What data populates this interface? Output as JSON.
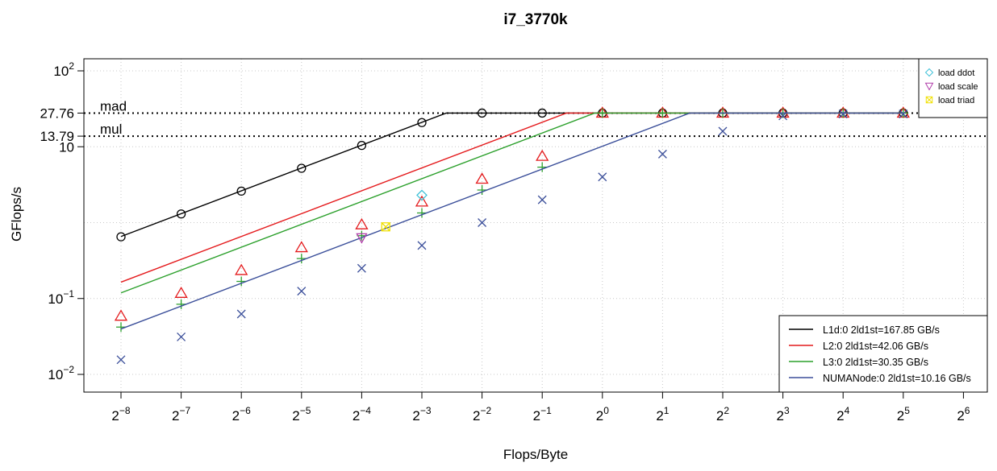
{
  "chart_data": {
    "type": "line",
    "title": "i7_3770k",
    "xlabel": "Flops/Byte",
    "ylabel": "GFlops/s",
    "x_scale": "log2",
    "y_scale": "log10",
    "xlim": [
      -8.3,
      6.3
    ],
    "ylim_log10": [
      -2.2,
      2.2
    ],
    "x_ticks": [
      {
        "exp": -8,
        "base": "2",
        "sup": "−8"
      },
      {
        "exp": -7,
        "base": "2",
        "sup": "−7"
      },
      {
        "exp": -6,
        "base": "2",
        "sup": "−6"
      },
      {
        "exp": -5,
        "base": "2",
        "sup": "−5"
      },
      {
        "exp": -4,
        "base": "2",
        "sup": "−4"
      },
      {
        "exp": -3,
        "base": "2",
        "sup": "−3"
      },
      {
        "exp": -2,
        "base": "2",
        "sup": "−2"
      },
      {
        "exp": -1,
        "base": "2",
        "sup": "−1"
      },
      {
        "exp": 0,
        "base": "2",
        "sup": "0"
      },
      {
        "exp": 1,
        "base": "2",
        "sup": "1"
      },
      {
        "exp": 2,
        "base": "2",
        "sup": "2"
      },
      {
        "exp": 3,
        "base": "2",
        "sup": "3"
      },
      {
        "exp": 4,
        "base": "2",
        "sup": "4"
      },
      {
        "exp": 5,
        "base": "2",
        "sup": "5"
      },
      {
        "exp": 6,
        "base": "2",
        "sup": "6"
      }
    ],
    "y_ticks": [
      {
        "value": 0.01,
        "base": "10",
        "sup": "−2"
      },
      {
        "value": 0.1,
        "base": "10",
        "sup": "−1"
      },
      {
        "value": 10,
        "text": "10"
      },
      {
        "value": 13.79,
        "text": "13.79"
      },
      {
        "value": 27.76,
        "text": "27.76"
      },
      {
        "value": 100,
        "base": "10",
        "sup": "2"
      }
    ],
    "y_grid": [
      0.01,
      0.1,
      1,
      10,
      100
    ],
    "x_grid": [
      -8,
      -7,
      -6,
      -5,
      -4,
      -3,
      -2,
      -1,
      0,
      1,
      2,
      3,
      4,
      5,
      6
    ],
    "grid": true,
    "roofs": [
      {
        "label": "mad",
        "value": 27.76
      },
      {
        "label": "mul",
        "value": 13.79
      }
    ],
    "series": [
      {
        "name": "L1d:0 2ld1st=167.85 GB/s",
        "bandwidth": 167.85,
        "color": "#000000",
        "marker": "circle",
        "x": [
          -8,
          -7,
          -6,
          -5,
          -4,
          -3,
          -2,
          -1,
          0,
          1,
          2,
          3,
          4,
          5
        ],
        "y": [
          0.65,
          1.3,
          2.6,
          5.2,
          10.4,
          20.8,
          27.76,
          27.76,
          27.76,
          27.76,
          27.76,
          27.76,
          27.76,
          27.76
        ]
      },
      {
        "name": "L2:0 2ld1st=42.06 GB/s",
        "bandwidth": 42.06,
        "color": "#e41a1c",
        "marker": "triangle",
        "x": [
          -8,
          -7,
          -6,
          -5,
          -4,
          -3,
          -2,
          -1,
          0,
          1,
          2,
          3,
          4,
          5
        ],
        "y": [
          0.0585,
          0.117,
          0.234,
          0.468,
          0.936,
          1.87,
          3.74,
          7.48,
          27.76,
          27.76,
          27.76,
          27.76,
          27.76,
          27.76
        ]
      },
      {
        "name": "L3:0 2ld1st=30.35 GB/s",
        "bandwidth": 30.35,
        "color": "#2ca02c",
        "marker": "plus",
        "x": [
          -8,
          -7,
          -6,
          -5,
          -4,
          -3,
          -2,
          -1,
          0,
          1,
          2,
          3,
          4,
          5
        ],
        "y": [
          0.042,
          0.084,
          0.168,
          0.336,
          0.672,
          1.34,
          2.69,
          5.38,
          27.76,
          27.76,
          27.76,
          27.76,
          27.76,
          27.76
        ]
      },
      {
        "name": "NUMANode:0 2ld1st=10.16 GB/s",
        "bandwidth": 10.16,
        "color": "#3b4f9a",
        "marker": "x",
        "x": [
          -8,
          -7,
          -6,
          -5,
          -4,
          -3,
          -2,
          -1,
          0,
          1,
          2,
          3,
          4,
          5
        ],
        "y": [
          0.0156,
          0.0312,
          0.0625,
          0.125,
          0.25,
          0.5,
          1.0,
          2.0,
          4.0,
          8.0,
          16.0,
          25.5,
          27.0,
          27.0
        ]
      }
    ],
    "points": [
      {
        "name": "load ddot",
        "color": "#3fc1d8",
        "marker": "diamond",
        "x": -3,
        "y": 2.3
      },
      {
        "name": "load scale",
        "color": "#b03aa8",
        "marker": "down-triangle",
        "x": -4,
        "y": 0.63
      },
      {
        "name": "load triad",
        "color": "#f0e000",
        "marker": "boxed-x",
        "x": -3.6,
        "y": 0.88
      }
    ],
    "legend_placement": "bottom-right",
    "points_legend_placement": "top-right"
  }
}
